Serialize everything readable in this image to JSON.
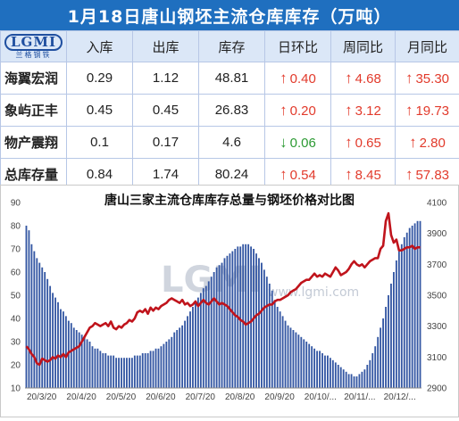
{
  "header": {
    "title": "1月18日唐山钢坯主流仓库库存（万吨）"
  },
  "logo": {
    "main": "LGMI",
    "sub": "兰格钢铁"
  },
  "table": {
    "columns": [
      "入库",
      "出库",
      "库存",
      "日环比",
      "周同比",
      "月同比"
    ],
    "rows": [
      {
        "name": "海翼宏润",
        "in": "0.29",
        "out": "1.12",
        "stock": "48.81",
        "day": {
          "dir": "up",
          "value": "0.40"
        },
        "week": {
          "dir": "up",
          "value": "4.68"
        },
        "month": {
          "dir": "up",
          "value": "35.30"
        }
      },
      {
        "name": "象屿正丰",
        "in": "0.45",
        "out": "0.45",
        "stock": "26.83",
        "day": {
          "dir": "up",
          "value": "0.20"
        },
        "week": {
          "dir": "up",
          "value": "3.12"
        },
        "month": {
          "dir": "up",
          "value": "19.73"
        }
      },
      {
        "name": "物产震翔",
        "in": "0.1",
        "out": "0.17",
        "stock": "4.6",
        "day": {
          "dir": "down",
          "value": "0.06"
        },
        "week": {
          "dir": "up",
          "value": "0.65"
        },
        "month": {
          "dir": "up",
          "value": "2.80"
        }
      },
      {
        "name": "总库存量",
        "in": "0.84",
        "out": "1.74",
        "stock": "80.24",
        "day": {
          "dir": "up",
          "value": "0.54"
        },
        "week": {
          "dir": "up",
          "value": "8.45"
        },
        "month": {
          "dir": "up",
          "value": "57.83"
        }
      }
    ]
  },
  "colors": {
    "bar": "#3457a3",
    "line": "#c0141c",
    "header_bg": "#1f6fbf",
    "up": "#e23a2b",
    "down": "#2c9a33"
  },
  "chart_data": {
    "type": "bar",
    "title": "唐山三家主流仓库库存总量与钢坯价格对比图",
    "x_tick_labels": [
      "20/3/20",
      "20/4/20",
      "20/5/20",
      "20/6/20",
      "20/7/20",
      "20/8/20",
      "20/9/20",
      "20/10/...",
      "20/11/...",
      "20/12/..."
    ],
    "left_axis": {
      "ylim": [
        10,
        90
      ],
      "ticks": [
        10,
        20,
        30,
        40,
        50,
        60,
        70,
        80,
        90
      ]
    },
    "right_axis": {
      "ylim": [
        2900,
        4100
      ],
      "ticks": [
        2900,
        3100,
        3300,
        3500,
        3700,
        3900,
        4100
      ]
    },
    "watermark": "www.lgmi.com",
    "series": [
      {
        "axis": "left",
        "type": "bar",
        "values": [
          80,
          78,
          72,
          69,
          66,
          64,
          62,
          60,
          57,
          54,
          51,
          49,
          47,
          44,
          43,
          41,
          39,
          38,
          36,
          35,
          34,
          33,
          32,
          31,
          30,
          28,
          27,
          27,
          26,
          25,
          25,
          24,
          24,
          24,
          23,
          23,
          23,
          23,
          23,
          23,
          23,
          24,
          24,
          24,
          25,
          25,
          25,
          26,
          26,
          27,
          27,
          28,
          29,
          30,
          31,
          32,
          34,
          35,
          36,
          37,
          39,
          41,
          43,
          45,
          47,
          49,
          51,
          53,
          54,
          56,
          58,
          60,
          62,
          63,
          64,
          66,
          67,
          68,
          69,
          70,
          71,
          71,
          72,
          72,
          72,
          71,
          70,
          68,
          66,
          64,
          61,
          58,
          55,
          52,
          48,
          45,
          43,
          41,
          39,
          37,
          36,
          35,
          34,
          33,
          32,
          31,
          30,
          29,
          28,
          27,
          26,
          26,
          25,
          24,
          24,
          23,
          22,
          21,
          20,
          19,
          18,
          17,
          16,
          16,
          15,
          15,
          16,
          17,
          18,
          20,
          22,
          25,
          28,
          32,
          36,
          40,
          45,
          50,
          55,
          60,
          65,
          69,
          72,
          75,
          77,
          79,
          80,
          81,
          82,
          82
        ]
      },
      {
        "axis": "right",
        "type": "line",
        "values": [
          3170,
          3150,
          3120,
          3100,
          3060,
          3050,
          3090,
          3080,
          3070,
          3080,
          3100,
          3090,
          3110,
          3100,
          3120,
          3100,
          3130,
          3140,
          3150,
          3160,
          3170,
          3200,
          3230,
          3260,
          3290,
          3300,
          3320,
          3310,
          3300,
          3310,
          3320,
          3300,
          3330,
          3290,
          3280,
          3300,
          3290,
          3310,
          3320,
          3340,
          3330,
          3350,
          3390,
          3400,
          3390,
          3410,
          3380,
          3420,
          3400,
          3420,
          3410,
          3430,
          3440,
          3450,
          3470,
          3480,
          3470,
          3460,
          3450,
          3470,
          3440,
          3450,
          3430,
          3440,
          3460,
          3430,
          3450,
          3470,
          3450,
          3440,
          3460,
          3480,
          3460,
          3440,
          3450,
          3440,
          3430,
          3410,
          3390,
          3370,
          3360,
          3340,
          3330,
          3310,
          3320,
          3330,
          3350,
          3370,
          3380,
          3400,
          3420,
          3430,
          3440,
          3440,
          3460,
          3470,
          3470,
          3480,
          3490,
          3500,
          3520,
          3530,
          3540,
          3560,
          3580,
          3590,
          3600,
          3600,
          3620,
          3640,
          3620,
          3630,
          3620,
          3640,
          3630,
          3620,
          3650,
          3680,
          3660,
          3630,
          3640,
          3650,
          3670,
          3700,
          3720,
          3700,
          3690,
          3700,
          3680,
          3700,
          3720,
          3730,
          3740,
          3740,
          3800,
          3820,
          3980,
          4030,
          3890,
          3840,
          3860,
          3790,
          3790,
          3800,
          3810,
          3810,
          3820,
          3800,
          3810,
          3810
        ]
      }
    ]
  }
}
